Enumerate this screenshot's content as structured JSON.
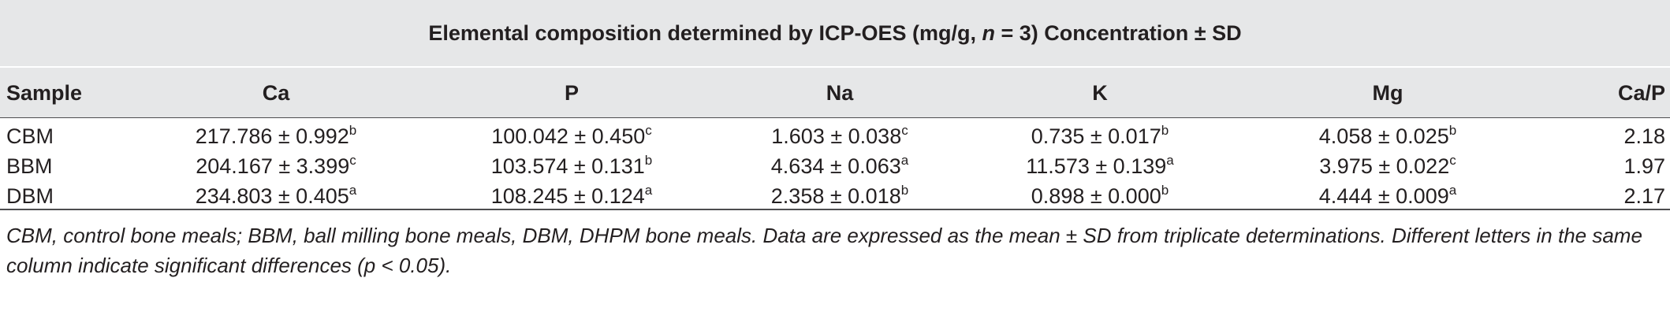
{
  "table": {
    "spanner_heading": {
      "before_italic": "Elemental composition determined by ICP-OES (mg/g, ",
      "italic": "n",
      "after_italic": " = 3) Concentration ± SD"
    },
    "columns": [
      "Sample",
      "Ca",
      "P",
      "Na",
      "K",
      "Mg",
      "Ca/P"
    ],
    "rows": [
      {
        "sample": "CBM",
        "ca": {
          "value": "217.786 ± 0.992",
          "letter": "b"
        },
        "p": {
          "value": "100.042 ± 0.450",
          "letter": "c"
        },
        "na": {
          "value": "1.603 ± 0.038",
          "letter": "c"
        },
        "k": {
          "value": "0.735 ± 0.017",
          "letter": "b"
        },
        "mg": {
          "value": "4.058 ± 0.025",
          "letter": "b"
        },
        "ca_p": "2.18"
      },
      {
        "sample": "BBM",
        "ca": {
          "value": "204.167 ± 3.399",
          "letter": "c"
        },
        "p": {
          "value": "103.574 ± 0.131",
          "letter": "b"
        },
        "na": {
          "value": "4.634 ± 0.063",
          "letter": "a"
        },
        "k": {
          "value": "11.573 ± 0.139",
          "letter": "a"
        },
        "mg": {
          "value": "3.975 ± 0.022",
          "letter": "c"
        },
        "ca_p": "1.97"
      },
      {
        "sample": "DBM",
        "ca": {
          "value": "234.803 ± 0.405",
          "letter": "a"
        },
        "p": {
          "value": "108.245 ± 0.124",
          "letter": "a"
        },
        "na": {
          "value": "2.358 ± 0.018",
          "letter": "b"
        },
        "k": {
          "value": "0.898 ± 0.000",
          "letter": "b"
        },
        "mg": {
          "value": "4.444 ± 0.009",
          "letter": "a"
        },
        "ca_p": "2.17"
      }
    ],
    "footnote": "CBM, control bone meals; BBM, ball milling bone meals, DBM, DHPM bone meals. Data are expressed as the mean ± SD from triplicate determinations. Different letters in the same column indicate significant differences (p < 0.05).",
    "colors": {
      "header_band": "#e6e7e8",
      "rule": "#4d4d4f",
      "text": "#231f20"
    }
  }
}
